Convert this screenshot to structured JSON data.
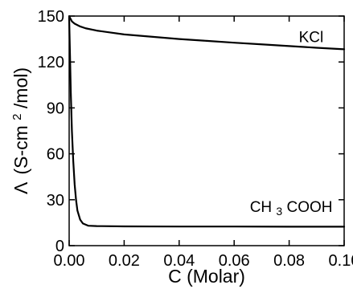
{
  "chart_data": {
    "type": "line",
    "title": "",
    "xlabel": "C (Molar)",
    "ylabel_symbol": "Λ",
    "ylabel_prefix": "(S-cm",
    "ylabel_superscript": "2",
    "ylabel_suffix": "/mol)",
    "xlim": [
      0,
      0.1
    ],
    "ylim": [
      0,
      150
    ],
    "x_ticks": [
      0,
      0.02,
      0.04,
      0.06,
      0.08,
      0.1
    ],
    "x_tick_labels": [
      "0.00",
      "0.02",
      "0.04",
      "0.06",
      "0.08",
      "0.10"
    ],
    "y_ticks": [
      0,
      30,
      60,
      90,
      120,
      150
    ],
    "y_tick_labels": [
      "0",
      "30",
      "60",
      "90",
      "120",
      "150"
    ],
    "grid": false,
    "legend": "none",
    "series": [
      {
        "label_parts": [
          "KCl"
        ],
        "color": "#000000",
        "x": [
          0,
          0.001,
          0.002,
          0.004,
          0.006,
          0.01,
          0.02,
          0.03,
          0.04,
          0.05,
          0.06,
          0.07,
          0.08,
          0.09,
          0.1
        ],
        "y": [
          149.9,
          146.5,
          145.0,
          143.2,
          142.0,
          140.5,
          138.0,
          136.5,
          135.0,
          133.8,
          132.6,
          131.5,
          130.4,
          129.3,
          128.3
        ]
      },
      {
        "label_parts": [
          "CH",
          "3",
          "COOH"
        ],
        "color": "#000000",
        "x": [
          0,
          0.0003,
          0.0006,
          0.001,
          0.0015,
          0.002,
          0.0025,
          0.003,
          0.004,
          0.005,
          0.007,
          0.01,
          0.02,
          0.04,
          0.06,
          0.08,
          0.1
        ],
        "y": [
          149.0,
          125.0,
          100.0,
          75.0,
          55.0,
          40.0,
          30.0,
          23.0,
          17.0,
          14.5,
          13.0,
          12.8,
          12.6,
          12.5,
          12.5,
          12.4,
          12.4
        ]
      }
    ]
  }
}
